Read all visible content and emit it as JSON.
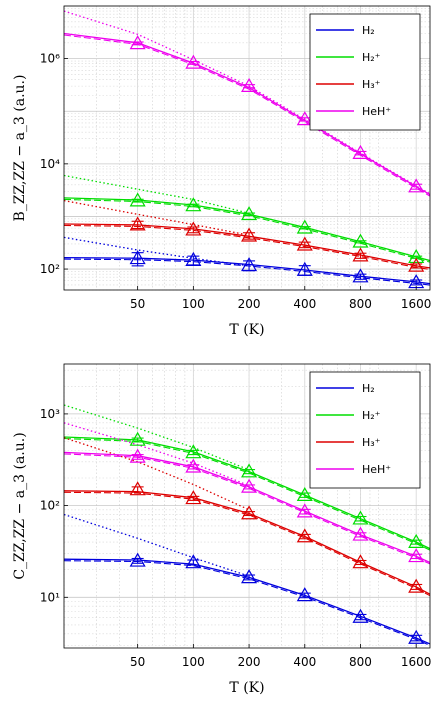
{
  "chart_data": [
    {
      "type": "line",
      "xlabel": "T (K)",
      "ylabel": "B_ZZ,ZZ − a_3 (a.u.)",
      "x_scale": "log",
      "y_scale": "log",
      "xlim": [
        20,
        1900
      ],
      "ylim": [
        40,
        10000000
      ],
      "x_ticks": [
        50,
        100,
        200,
        400,
        800,
        1600
      ],
      "x_tick_labels": [
        "50",
        "100",
        "200",
        "400",
        "800",
        "1600"
      ],
      "y_ticks": [
        100,
        10000,
        1000000
      ],
      "y_tick_labels": [
        "10²",
        "10⁴",
        "10⁶"
      ],
      "grid": true,
      "legend_position": "top-right",
      "series": [
        {
          "name": "H₂",
          "color": "#0000dd",
          "points": [
            {
              "x": 50,
              "y": 160,
              "err": 45
            },
            {
              "x": 100,
              "y": 148,
              "err": 28
            },
            {
              "x": 200,
              "y": 118,
              "err": 25
            },
            {
              "x": 400,
              "y": 96,
              "err": 20
            },
            {
              "x": 800,
              "y": 72,
              "err": 8
            },
            {
              "x": 1600,
              "y": 56,
              "err": 6
            }
          ],
          "curve": [
            {
              "x": 20,
              "y": 165
            },
            {
              "x": 50,
              "y": 161
            },
            {
              "x": 100,
              "y": 148
            },
            {
              "x": 200,
              "y": 122
            },
            {
              "x": 400,
              "y": 96
            },
            {
              "x": 800,
              "y": 73
            },
            {
              "x": 1600,
              "y": 57
            },
            {
              "x": 1900,
              "y": 53
            }
          ],
          "asymptote": [
            {
              "x": 20,
              "y": 400
            },
            {
              "x": 50,
              "y": 230
            },
            {
              "x": 100,
              "y": 160
            },
            {
              "x": 200,
              "y": 115
            }
          ]
        },
        {
          "name": "H₂⁺",
          "color": "#00dd00",
          "points": [
            {
              "x": 50,
              "y": 2000,
              "err": 120
            },
            {
              "x": 100,
              "y": 1620,
              "err": 90
            },
            {
              "x": 200,
              "y": 1100,
              "err": 60
            },
            {
              "x": 400,
              "y": 610,
              "err": 30
            },
            {
              "x": 800,
              "y": 330,
              "err": 15
            },
            {
              "x": 1600,
              "y": 168,
              "err": 8
            }
          ],
          "curve": [
            {
              "x": 20,
              "y": 2250
            },
            {
              "x": 50,
              "y": 2050
            },
            {
              "x": 100,
              "y": 1650
            },
            {
              "x": 200,
              "y": 1100
            },
            {
              "x": 400,
              "y": 620
            },
            {
              "x": 800,
              "y": 330
            },
            {
              "x": 1600,
              "y": 170
            },
            {
              "x": 1900,
              "y": 145
            }
          ],
          "asymptote": [
            {
              "x": 20,
              "y": 6000
            },
            {
              "x": 50,
              "y": 3300
            },
            {
              "x": 100,
              "y": 2100
            },
            {
              "x": 200,
              "y": 1150
            }
          ]
        },
        {
          "name": "H₃⁺",
          "color": "#dd0000",
          "points": [
            {
              "x": 50,
              "y": 700,
              "err": 110
            },
            {
              "x": 100,
              "y": 560,
              "err": 70
            },
            {
              "x": 200,
              "y": 430,
              "err": 60
            },
            {
              "x": 400,
              "y": 290,
              "err": 35
            },
            {
              "x": 800,
              "y": 180,
              "err": 20
            },
            {
              "x": 1600,
              "y": 115,
              "err": 10
            }
          ],
          "curve": [
            {
              "x": 20,
              "y": 720
            },
            {
              "x": 50,
              "y": 690
            },
            {
              "x": 100,
              "y": 580
            },
            {
              "x": 200,
              "y": 420
            },
            {
              "x": 400,
              "y": 285
            },
            {
              "x": 800,
              "y": 185
            },
            {
              "x": 1600,
              "y": 115
            },
            {
              "x": 1900,
              "y": 105
            }
          ],
          "asymptote": [
            {
              "x": 20,
              "y": 2000
            },
            {
              "x": 50,
              "y": 1100
            },
            {
              "x": 100,
              "y": 700
            },
            {
              "x": 200,
              "y": 440
            }
          ]
        },
        {
          "name": "HeH⁺",
          "color": "#ee00ee",
          "points": [
            {
              "x": 50,
              "y": 1950000,
              "err": 120000
            },
            {
              "x": 100,
              "y": 830000,
              "err": 50000
            },
            {
              "x": 200,
              "y": 300000,
              "err": 20000
            },
            {
              "x": 400,
              "y": 70000,
              "err": 5000
            },
            {
              "x": 800,
              "y": 16000,
              "err": 1200
            },
            {
              "x": 1600,
              "y": 3700,
              "err": 400
            }
          ],
          "curve": [
            {
              "x": 20,
              "y": 3000000
            },
            {
              "x": 50,
              "y": 2000000
            },
            {
              "x": 100,
              "y": 820000
            },
            {
              "x": 200,
              "y": 280000
            },
            {
              "x": 400,
              "y": 67000
            },
            {
              "x": 800,
              "y": 15500
            },
            {
              "x": 1600,
              "y": 3700
            },
            {
              "x": 1900,
              "y": 2600
            }
          ],
          "asymptote": [
            {
              "x": 20,
              "y": 8000000
            },
            {
              "x": 50,
              "y": 2900000
            },
            {
              "x": 100,
              "y": 950000
            },
            {
              "x": 200,
              "y": 300000
            },
            {
              "x": 400,
              "y": 70000
            },
            {
              "x": 800,
              "y": 16000
            },
            {
              "x": 1600,
              "y": 3800
            },
            {
              "x": 1900,
              "y": 2700
            }
          ]
        }
      ]
    },
    {
      "type": "line",
      "xlabel": "T (K)",
      "ylabel": "C_ZZ,ZZ − a_3 (a.u.)",
      "x_scale": "log",
      "y_scale": "log",
      "xlim": [
        20,
        1900
      ],
      "ylim": [
        2.8,
        3500
      ],
      "x_ticks": [
        50,
        100,
        200,
        400,
        800,
        1600
      ],
      "x_tick_labels": [
        "50",
        "100",
        "200",
        "400",
        "800",
        "1600"
      ],
      "y_ticks": [
        10,
        100,
        1000
      ],
      "y_tick_labels": [
        "10¹",
        "10²",
        "10³"
      ],
      "grid": true,
      "legend_position": "top-right",
      "series": [
        {
          "name": "H₂",
          "color": "#0000dd",
          "points": [
            {
              "x": 50,
              "y": 25,
              "err": 1.5
            },
            {
              "x": 100,
              "y": 24,
              "err": 1.5
            },
            {
              "x": 200,
              "y": 16.5,
              "err": 1
            },
            {
              "x": 400,
              "y": 10.5,
              "err": 0.6
            },
            {
              "x": 800,
              "y": 6.1,
              "err": 0.4
            },
            {
              "x": 1600,
              "y": 3.6,
              "err": 0.25
            }
          ],
          "curve": [
            {
              "x": 20,
              "y": 26
            },
            {
              "x": 50,
              "y": 25.5
            },
            {
              "x": 100,
              "y": 23
            },
            {
              "x": 200,
              "y": 16.5
            },
            {
              "x": 400,
              "y": 10.5
            },
            {
              "x": 800,
              "y": 6.2
            },
            {
              "x": 1600,
              "y": 3.6
            },
            {
              "x": 1900,
              "y": 3.1
            }
          ],
          "asymptote": [
            {
              "x": 20,
              "y": 80
            },
            {
              "x": 50,
              "y": 44
            },
            {
              "x": 100,
              "y": 27
            },
            {
              "x": 200,
              "y": 17
            }
          ]
        },
        {
          "name": "H₂⁺",
          "color": "#00dd00",
          "points": [
            {
              "x": 50,
              "y": 520,
              "err": 25
            },
            {
              "x": 100,
              "y": 380,
              "err": 20
            },
            {
              "x": 200,
              "y": 235,
              "err": 12
            },
            {
              "x": 400,
              "y": 130,
              "err": 7
            },
            {
              "x": 800,
              "y": 72,
              "err": 4
            },
            {
              "x": 1600,
              "y": 40,
              "err": 2
            }
          ],
          "curve": [
            {
              "x": 20,
              "y": 560
            },
            {
              "x": 50,
              "y": 520
            },
            {
              "x": 100,
              "y": 385
            },
            {
              "x": 200,
              "y": 235
            },
            {
              "x": 400,
              "y": 130
            },
            {
              "x": 800,
              "y": 72
            },
            {
              "x": 1600,
              "y": 40
            },
            {
              "x": 1900,
              "y": 34
            }
          ],
          "asymptote": [
            {
              "x": 20,
              "y": 1250
            },
            {
              "x": 50,
              "y": 700
            },
            {
              "x": 100,
              "y": 430
            },
            {
              "x": 200,
              "y": 245
            }
          ]
        },
        {
          "name": "H₃⁺",
          "color": "#dd0000",
          "points": [
            {
              "x": 50,
              "y": 150,
              "err": 10
            },
            {
              "x": 100,
              "y": 120,
              "err": 6
            },
            {
              "x": 200,
              "y": 82,
              "err": 4
            },
            {
              "x": 400,
              "y": 46,
              "err": 2.5
            },
            {
              "x": 800,
              "y": 24,
              "err": 1.2
            },
            {
              "x": 1600,
              "y": 13,
              "err": 0.8
            }
          ],
          "curve": [
            {
              "x": 20,
              "y": 145
            },
            {
              "x": 50,
              "y": 142
            },
            {
              "x": 100,
              "y": 122
            },
            {
              "x": 200,
              "y": 82
            },
            {
              "x": 400,
              "y": 46
            },
            {
              "x": 800,
              "y": 24
            },
            {
              "x": 1600,
              "y": 13
            },
            {
              "x": 1900,
              "y": 10.8
            }
          ],
          "asymptote": [
            {
              "x": 20,
              "y": 550
            },
            {
              "x": 50,
              "y": 300
            },
            {
              "x": 100,
              "y": 170
            },
            {
              "x": 200,
              "y": 90
            }
          ]
        },
        {
          "name": "HeH⁺",
          "color": "#ee00ee",
          "points": [
            {
              "x": 50,
              "y": 340,
              "err": 20
            },
            {
              "x": 100,
              "y": 265,
              "err": 14
            },
            {
              "x": 200,
              "y": 160,
              "err": 8
            },
            {
              "x": 400,
              "y": 86,
              "err": 5
            },
            {
              "x": 800,
              "y": 48,
              "err": 2.5
            },
            {
              "x": 1600,
              "y": 28,
              "err": 1.5
            }
          ],
          "curve": [
            {
              "x": 20,
              "y": 380
            },
            {
              "x": 50,
              "y": 350
            },
            {
              "x": 100,
              "y": 265
            },
            {
              "x": 200,
              "y": 160
            },
            {
              "x": 400,
              "y": 87
            },
            {
              "x": 800,
              "y": 48
            },
            {
              "x": 1600,
              "y": 28
            },
            {
              "x": 1900,
              "y": 24
            }
          ],
          "asymptote": [
            {
              "x": 20,
              "y": 800
            },
            {
              "x": 50,
              "y": 460
            },
            {
              "x": 100,
              "y": 290
            },
            {
              "x": 200,
              "y": 165
            }
          ]
        }
      ]
    }
  ]
}
